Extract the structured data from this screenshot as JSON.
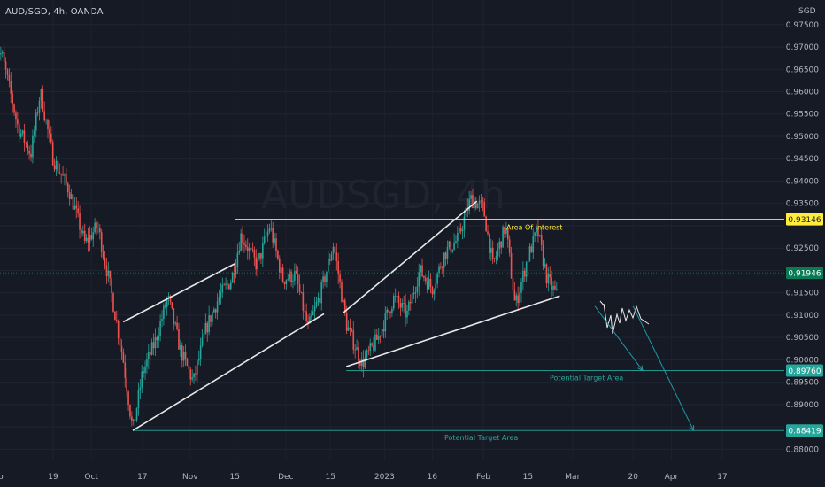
{
  "header": {
    "symbol": "AUD/SGD, 4h, OANDA",
    "currency": "SGD",
    "watermark": "AUDSGD, 4h"
  },
  "colors": {
    "bg": "#161a25",
    "up": "#26a69a",
    "down": "#ef5350",
    "resistance": "#ffeb3b",
    "target": "#26a69a",
    "current": "#0a7a55",
    "trend": "#e8e8e8",
    "arrow": "#1e9aa6"
  },
  "chart_data": {
    "type": "candlestick",
    "title": "AUD/SGD, 4h, OANDA",
    "ylabel": "SGD",
    "ylim": [
      0.8775,
      0.9805
    ],
    "y_ticks": [
      0.975,
      0.97,
      0.965,
      0.96,
      0.955,
      0.95,
      0.945,
      0.94,
      0.935,
      0.93,
      0.925,
      0.92,
      0.915,
      0.91,
      0.905,
      0.9,
      0.895,
      0.89,
      0.885,
      0.88
    ],
    "y_tick_labels": [
      "0.97500",
      "0.97000",
      "0.96500",
      "0.96000",
      "0.95500",
      "0.95000",
      "0.94500",
      "0.94000",
      "0.93500",
      "0.93000",
      "0.92500",
      "0.92000",
      "0.91500",
      "0.91000",
      "0.90500",
      "0.90000",
      "0.89500",
      "0.89000",
      "0.88500",
      "0.88000"
    ],
    "x_ticks": [
      "Sep",
      "19",
      "Oct",
      "17",
      "Nov",
      "15",
      "Dec",
      "15",
      "2023",
      "16",
      "Feb",
      "15",
      "Mar",
      "20",
      "Apr",
      "17"
    ],
    "price_path": [
      [
        "Sep 01",
        0.97
      ],
      [
        "Sep 03",
        0.968
      ],
      [
        "Sep 08",
        0.952
      ],
      [
        "Sep 12",
        0.946
      ],
      [
        "Sep 15",
        0.96
      ],
      [
        "Sep 19",
        0.945
      ],
      [
        "Sep 24",
        0.938
      ],
      [
        "Sep 29",
        0.926
      ],
      [
        "Oct 03",
        0.93
      ],
      [
        "Oct 07",
        0.916
      ],
      [
        "Oct 11",
        0.9
      ],
      [
        "Oct 14",
        0.884
      ],
      [
        "Oct 17",
        0.897
      ],
      [
        "Oct 21",
        0.904
      ],
      [
        "Oct 25",
        0.914
      ],
      [
        "Oct 29",
        0.902
      ],
      [
        "Nov 02",
        0.895
      ],
      [
        "Nov 06",
        0.907
      ],
      [
        "Nov 10",
        0.914
      ],
      [
        "Nov 14",
        0.918
      ],
      [
        "Nov 17",
        0.928
      ],
      [
        "Nov 22",
        0.921
      ],
      [
        "Nov 26",
        0.93
      ],
      [
        "Nov 30",
        0.918
      ],
      [
        "Dec 04",
        0.919
      ],
      [
        "Dec 08",
        0.907
      ],
      [
        "Dec 12",
        0.915
      ],
      [
        "Dec 16",
        0.926
      ],
      [
        "Dec 20",
        0.908
      ],
      [
        "Dec 25",
        0.899
      ],
      [
        "Dec 30",
        0.905
      ],
      [
        "Jan 04",
        0.914
      ],
      [
        "Jan 08",
        0.91
      ],
      [
        "Jan 12",
        0.92
      ],
      [
        "Jan 16",
        0.916
      ],
      [
        "Jan 20",
        0.924
      ],
      [
        "Jan 24",
        0.927
      ],
      [
        "Jan 28",
        0.936
      ],
      [
        "Feb 01",
        0.934
      ],
      [
        "Feb 04",
        0.921
      ],
      [
        "Feb 08",
        0.93
      ],
      [
        "Feb 11",
        0.912
      ],
      [
        "Feb 15",
        0.923
      ],
      [
        "Feb 18",
        0.929
      ],
      [
        "Feb 21",
        0.918
      ],
      [
        "Feb 24",
        0.9145
      ]
    ],
    "last_price": 0.91946,
    "levels": [
      {
        "label": "Area Of Interest",
        "value": 0.93146,
        "badge": "0.93146",
        "kind": "resistance",
        "from": "Nov 15",
        "to": "Apr 30"
      },
      {
        "label": "Potential Target Area",
        "value": 0.8976,
        "badge": "0.89760",
        "kind": "target",
        "from": "Dec 20",
        "to": "Apr 30"
      },
      {
        "label": "Potential Target Area",
        "value": 0.88419,
        "badge": "0.88419",
        "kind": "target",
        "from": "Oct 14",
        "to": "Apr 30"
      }
    ],
    "trendlines": [
      {
        "from": [
          "Oct 11",
          0.9085
        ],
        "to": [
          "Nov 15",
          0.9215
        ]
      },
      {
        "from": [
          "Oct 14",
          0.8842
        ],
        "to": [
          "Dec 13",
          0.9103
        ]
      },
      {
        "from": [
          "Dec 19",
          0.9105
        ],
        "to": [
          "Jan 30",
          0.9355
        ]
      },
      {
        "from": [
          "Dec 20",
          0.8985
        ],
        "to": [
          "Feb 25",
          0.9143
        ]
      }
    ],
    "projection_arrows": [
      {
        "from": [
          "Mar 08",
          0.912
        ],
        "to": [
          "Mar 23",
          0.8976
        ]
      },
      {
        "from": [
          "Mar 20",
          0.912
        ],
        "to": [
          "Apr 08",
          0.8842
        ]
      }
    ]
  }
}
